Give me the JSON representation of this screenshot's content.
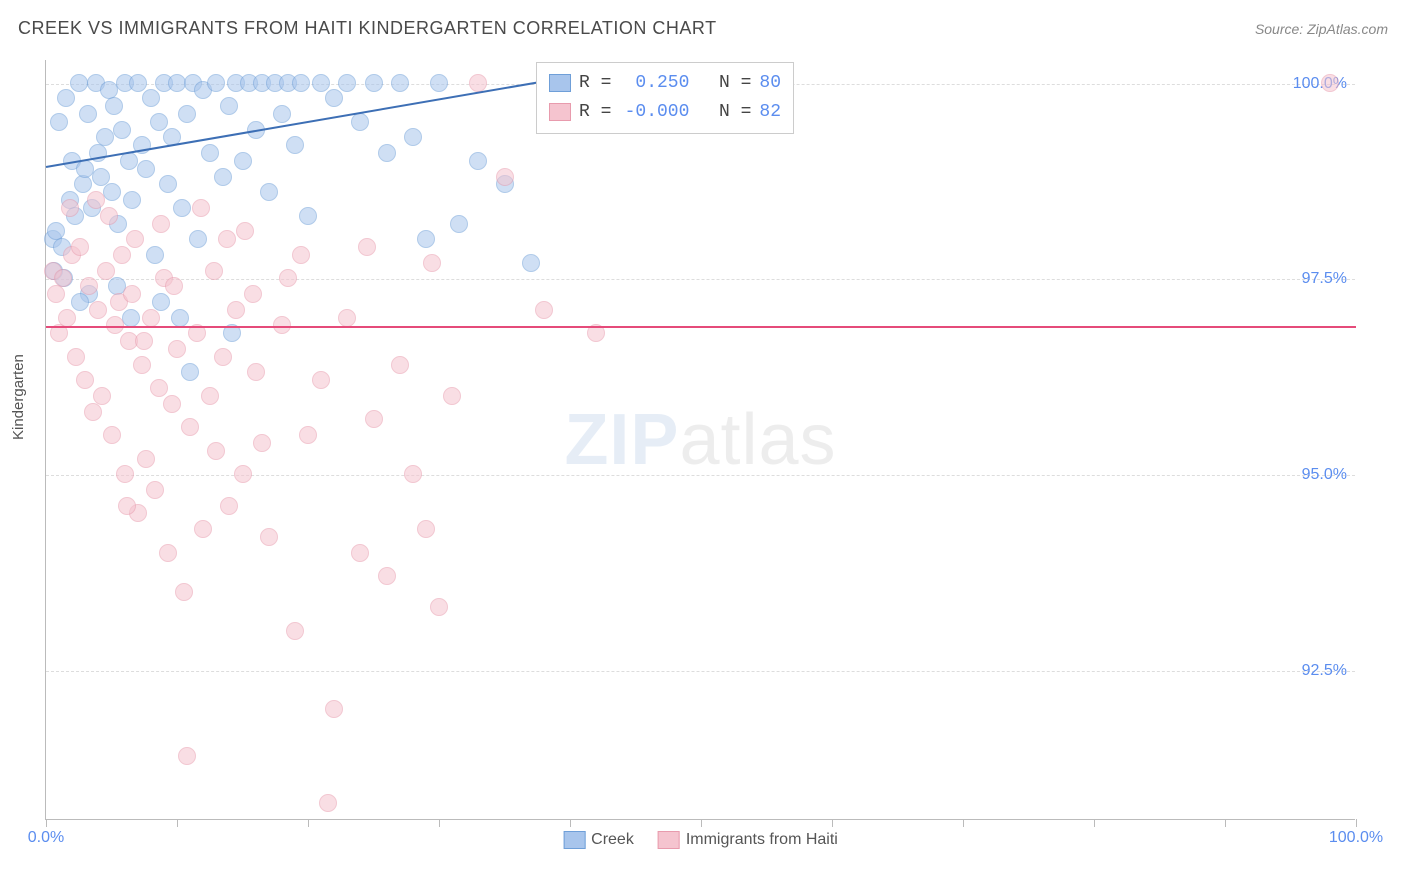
{
  "header": {
    "title": "CREEK VS IMMIGRANTS FROM HAITI KINDERGARTEN CORRELATION CHART",
    "source": "Source: ZipAtlas.com"
  },
  "chart": {
    "type": "scatter",
    "ylabel": "Kindergarten",
    "xlim": [
      0,
      100
    ],
    "ylim": [
      90.6,
      100.3
    ],
    "xticks": [
      0,
      10,
      20,
      30,
      40,
      50,
      60,
      70,
      80,
      90,
      100
    ],
    "xtick_labels_shown": {
      "0": "0.0%",
      "100": "100.0%"
    },
    "yticks": [
      92.5,
      95.0,
      97.5,
      100.0
    ],
    "ytick_labels": [
      "92.5%",
      "95.0%",
      "97.5%",
      "100.0%"
    ],
    "background_color": "#ffffff",
    "grid_color": "#dddddd",
    "axis_color": "#bbbbbb",
    "tick_label_color": "#5b8def",
    "marker_radius": 9,
    "marker_opacity": 0.55,
    "watermark": {
      "zip": "ZIP",
      "atlas": "atlas"
    },
    "series": [
      {
        "name": "Creek",
        "color_fill": "#a8c5ec",
        "color_stroke": "#6f9fd8",
        "r_value": "0.250",
        "n_value": "80",
        "trend": {
          "x1": 0,
          "y1": 98.95,
          "x2": 40,
          "y2": 100.1,
          "color": "#3d6fb5"
        },
        "points": [
          [
            0.5,
            98.0
          ],
          [
            0.8,
            98.1
          ],
          [
            1.0,
            99.5
          ],
          [
            1.2,
            97.9
          ],
          [
            1.5,
            99.8
          ],
          [
            1.8,
            98.5
          ],
          [
            2.0,
            99.0
          ],
          [
            2.2,
            98.3
          ],
          [
            2.5,
            100.0
          ],
          [
            2.8,
            98.7
          ],
          [
            3.0,
            98.9
          ],
          [
            3.2,
            99.6
          ],
          [
            3.5,
            98.4
          ],
          [
            3.8,
            100.0
          ],
          [
            4.0,
            99.1
          ],
          [
            4.2,
            98.8
          ],
          [
            4.5,
            99.3
          ],
          [
            4.8,
            99.9
          ],
          [
            5.0,
            98.6
          ],
          [
            5.2,
            99.7
          ],
          [
            5.5,
            98.2
          ],
          [
            5.8,
            99.4
          ],
          [
            6.0,
            100.0
          ],
          [
            6.3,
            99.0
          ],
          [
            6.6,
            98.5
          ],
          [
            7.0,
            100.0
          ],
          [
            7.3,
            99.2
          ],
          [
            7.6,
            98.9
          ],
          [
            8.0,
            99.8
          ],
          [
            8.3,
            97.8
          ],
          [
            8.6,
            99.5
          ],
          [
            9.0,
            100.0
          ],
          [
            9.3,
            98.7
          ],
          [
            9.6,
            99.3
          ],
          [
            10.0,
            100.0
          ],
          [
            10.4,
            98.4
          ],
          [
            10.8,
            99.6
          ],
          [
            11.2,
            100.0
          ],
          [
            11.6,
            98.0
          ],
          [
            12.0,
            99.9
          ],
          [
            12.5,
            99.1
          ],
          [
            13.0,
            100.0
          ],
          [
            13.5,
            98.8
          ],
          [
            14.0,
            99.7
          ],
          [
            14.5,
            100.0
          ],
          [
            15.0,
            99.0
          ],
          [
            15.5,
            100.0
          ],
          [
            16.0,
            99.4
          ],
          [
            16.5,
            100.0
          ],
          [
            17.0,
            98.6
          ],
          [
            17.5,
            100.0
          ],
          [
            18.0,
            99.6
          ],
          [
            18.5,
            100.0
          ],
          [
            19.0,
            99.2
          ],
          [
            19.5,
            100.0
          ],
          [
            20.0,
            98.3
          ],
          [
            21.0,
            100.0
          ],
          [
            22.0,
            99.8
          ],
          [
            23.0,
            100.0
          ],
          [
            24.0,
            99.5
          ],
          [
            25.0,
            100.0
          ],
          [
            26.0,
            99.1
          ],
          [
            27.0,
            100.0
          ],
          [
            28.0,
            99.3
          ],
          [
            29.0,
            98.0
          ],
          [
            30.0,
            100.0
          ],
          [
            31.5,
            98.2
          ],
          [
            33.0,
            99.0
          ],
          [
            35.0,
            98.7
          ],
          [
            37.0,
            97.7
          ],
          [
            0.6,
            97.6
          ],
          [
            1.4,
            97.5
          ],
          [
            3.3,
            97.3
          ],
          [
            5.4,
            97.4
          ],
          [
            8.8,
            97.2
          ],
          [
            11.0,
            96.3
          ],
          [
            14.2,
            96.8
          ],
          [
            10.2,
            97.0
          ],
          [
            2.6,
            97.2
          ],
          [
            6.5,
            97.0
          ]
        ]
      },
      {
        "name": "Immigrants from Haiti",
        "color_fill": "#f5c4cf",
        "color_stroke": "#e89bad",
        "r_value": "-0.000",
        "n_value": "82",
        "trend": {
          "x1": 0,
          "y1": 96.9,
          "x2": 100,
          "y2": 96.9,
          "color": "#e54b7a"
        },
        "points": [
          [
            0.5,
            97.6
          ],
          [
            0.8,
            97.3
          ],
          [
            1.0,
            96.8
          ],
          [
            1.3,
            97.5
          ],
          [
            1.6,
            97.0
          ],
          [
            2.0,
            97.8
          ],
          [
            2.3,
            96.5
          ],
          [
            2.6,
            97.9
          ],
          [
            3.0,
            96.2
          ],
          [
            3.3,
            97.4
          ],
          [
            3.6,
            95.8
          ],
          [
            4.0,
            97.1
          ],
          [
            4.3,
            96.0
          ],
          [
            4.6,
            97.6
          ],
          [
            5.0,
            95.5
          ],
          [
            5.3,
            96.9
          ],
          [
            5.6,
            97.2
          ],
          [
            6.0,
            95.0
          ],
          [
            6.3,
            96.7
          ],
          [
            6.6,
            97.3
          ],
          [
            7.0,
            94.5
          ],
          [
            7.3,
            96.4
          ],
          [
            7.6,
            95.2
          ],
          [
            8.0,
            97.0
          ],
          [
            8.3,
            94.8
          ],
          [
            8.6,
            96.1
          ],
          [
            9.0,
            97.5
          ],
          [
            9.3,
            94.0
          ],
          [
            9.6,
            95.9
          ],
          [
            10.0,
            96.6
          ],
          [
            10.5,
            93.5
          ],
          [
            11.0,
            95.6
          ],
          [
            11.5,
            96.8
          ],
          [
            12.0,
            94.3
          ],
          [
            12.5,
            96.0
          ],
          [
            13.0,
            95.3
          ],
          [
            13.5,
            96.5
          ],
          [
            14.0,
            94.6
          ],
          [
            14.5,
            97.1
          ],
          [
            15.0,
            95.0
          ],
          [
            16.0,
            96.3
          ],
          [
            17.0,
            94.2
          ],
          [
            18.0,
            96.9
          ],
          [
            19.0,
            93.0
          ],
          [
            20.0,
            95.5
          ],
          [
            21.0,
            96.2
          ],
          [
            22.0,
            92.0
          ],
          [
            23.0,
            97.0
          ],
          [
            24.0,
            94.0
          ],
          [
            25.0,
            95.7
          ],
          [
            26.0,
            93.7
          ],
          [
            27.0,
            96.4
          ],
          [
            28.0,
            95.0
          ],
          [
            29.0,
            94.3
          ],
          [
            30.0,
            93.3
          ],
          [
            31.0,
            96.0
          ],
          [
            33.0,
            100.0
          ],
          [
            35.0,
            98.8
          ],
          [
            38.0,
            97.1
          ],
          [
            42.0,
            96.8
          ],
          [
            7.5,
            96.7
          ],
          [
            9.8,
            97.4
          ],
          [
            12.8,
            97.6
          ],
          [
            15.8,
            97.3
          ],
          [
            4.8,
            98.3
          ],
          [
            6.8,
            98.0
          ],
          [
            11.8,
            98.4
          ],
          [
            15.2,
            98.1
          ],
          [
            19.5,
            97.8
          ],
          [
            24.5,
            97.9
          ],
          [
            10.8,
            91.4
          ],
          [
            21.5,
            90.8
          ],
          [
            98.0,
            100.0
          ],
          [
            18.5,
            97.5
          ],
          [
            13.8,
            98.0
          ],
          [
            8.8,
            98.2
          ],
          [
            3.8,
            98.5
          ],
          [
            1.8,
            98.4
          ],
          [
            5.8,
            97.8
          ],
          [
            16.5,
            95.4
          ],
          [
            6.2,
            94.6
          ],
          [
            29.5,
            97.7
          ]
        ]
      }
    ],
    "bottom_legend": [
      {
        "label": "Creek",
        "fill": "#a8c5ec",
        "stroke": "#6f9fd8"
      },
      {
        "label": "Immigrants from Haiti",
        "fill": "#f5c4cf",
        "stroke": "#e89bad"
      }
    ]
  }
}
